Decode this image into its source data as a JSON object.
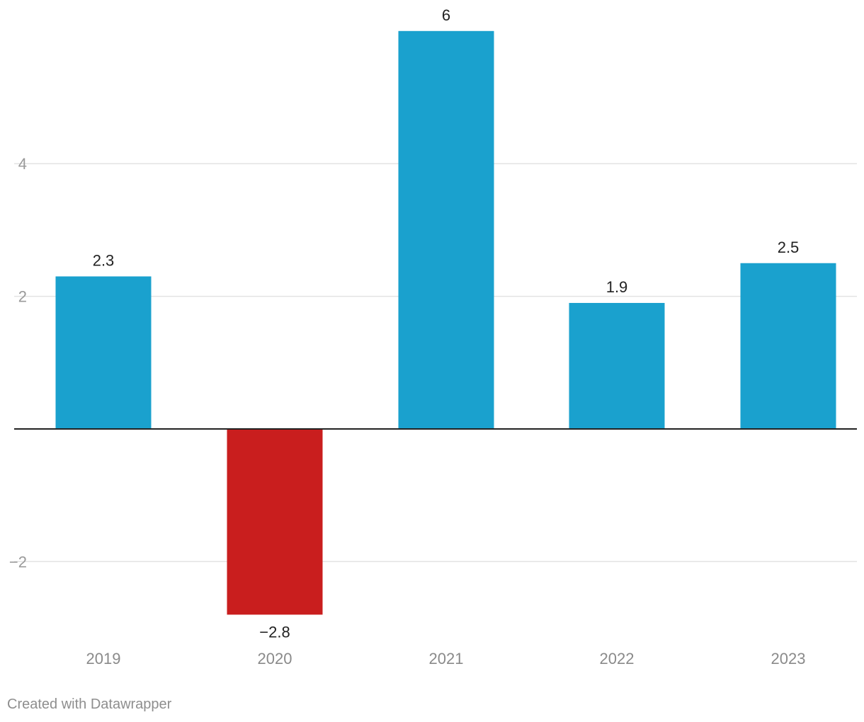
{
  "chart_data": {
    "type": "bar",
    "title": "",
    "xlabel": "",
    "ylabel": "",
    "categories": [
      "2019",
      "2020",
      "2021",
      "2022",
      "2023"
    ],
    "values": [
      2.3,
      -2.8,
      6,
      1.9,
      2.5
    ],
    "value_labels": [
      "2.3",
      "−2.8",
      "6",
      "1.9",
      "2.5"
    ],
    "yticks": [
      -2,
      2,
      4
    ],
    "ytick_labels": [
      "−2",
      "2",
      "4"
    ],
    "ylim": [
      -3.3,
      6.5
    ],
    "grid": true,
    "colors": {
      "positive": "#1aa1ce",
      "negative": "#c91e1e",
      "grid": "#e3e3e3",
      "baseline": "#222222"
    }
  },
  "footer": {
    "credit": "Created with Datawrapper"
  }
}
